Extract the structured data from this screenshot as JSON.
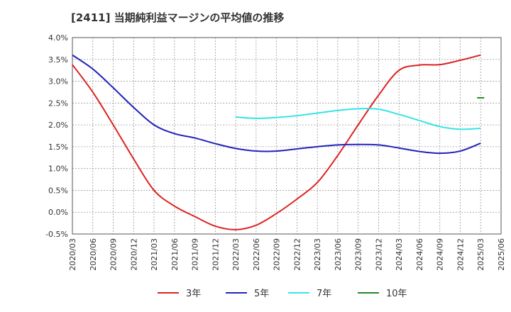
{
  "chart_data": {
    "type": "line",
    "title": "[2411]  当期純利益マージンの平均値の推移",
    "xlabel": "",
    "ylabel": "",
    "ylim": [
      -0.5,
      4.0
    ],
    "yticks": [
      "4.0%",
      "3.5%",
      "3.0%",
      "2.5%",
      "2.0%",
      "1.5%",
      "1.0%",
      "0.5%",
      "0.0%",
      "-0.5%"
    ],
    "categories": [
      "2020/03",
      "2020/06",
      "2020/09",
      "2020/12",
      "2021/03",
      "2021/06",
      "2021/09",
      "2021/12",
      "2022/03",
      "2022/06",
      "2022/09",
      "2022/12",
      "2023/03",
      "2023/06",
      "2023/09",
      "2023/12",
      "2024/03",
      "2024/06",
      "2024/09",
      "2024/12",
      "2025/03",
      "2025/06"
    ],
    "grid": true,
    "legend_position": "bottom",
    "series": [
      {
        "name": "3年",
        "color": "#dd2222",
        "values": [
          3.38,
          2.75,
          2.0,
          1.22,
          0.5,
          0.14,
          -0.1,
          -0.32,
          -0.4,
          -0.3,
          -0.03,
          0.3,
          0.68,
          1.3,
          2.0,
          2.68,
          3.25,
          3.37,
          3.38,
          3.48,
          3.6,
          null
        ]
      },
      {
        "name": "5年",
        "color": "#2222bb",
        "values": [
          3.6,
          3.28,
          2.85,
          2.4,
          2.0,
          1.8,
          1.7,
          1.57,
          1.46,
          1.4,
          1.4,
          1.45,
          1.5,
          1.54,
          1.55,
          1.54,
          1.47,
          1.39,
          1.35,
          1.4,
          1.58,
          null
        ]
      },
      {
        "name": "7年",
        "color": "#33e5e5",
        "values": [
          null,
          null,
          null,
          null,
          null,
          null,
          null,
          null,
          2.18,
          2.15,
          2.17,
          2.21,
          2.27,
          2.33,
          2.37,
          2.36,
          2.24,
          2.1,
          1.96,
          1.9,
          1.92,
          null
        ]
      },
      {
        "name": "10年",
        "color": "#228822",
        "values": [
          null,
          null,
          null,
          null,
          null,
          null,
          null,
          null,
          null,
          null,
          null,
          null,
          null,
          null,
          null,
          null,
          null,
          null,
          null,
          null,
          2.62,
          null
        ]
      }
    ]
  }
}
